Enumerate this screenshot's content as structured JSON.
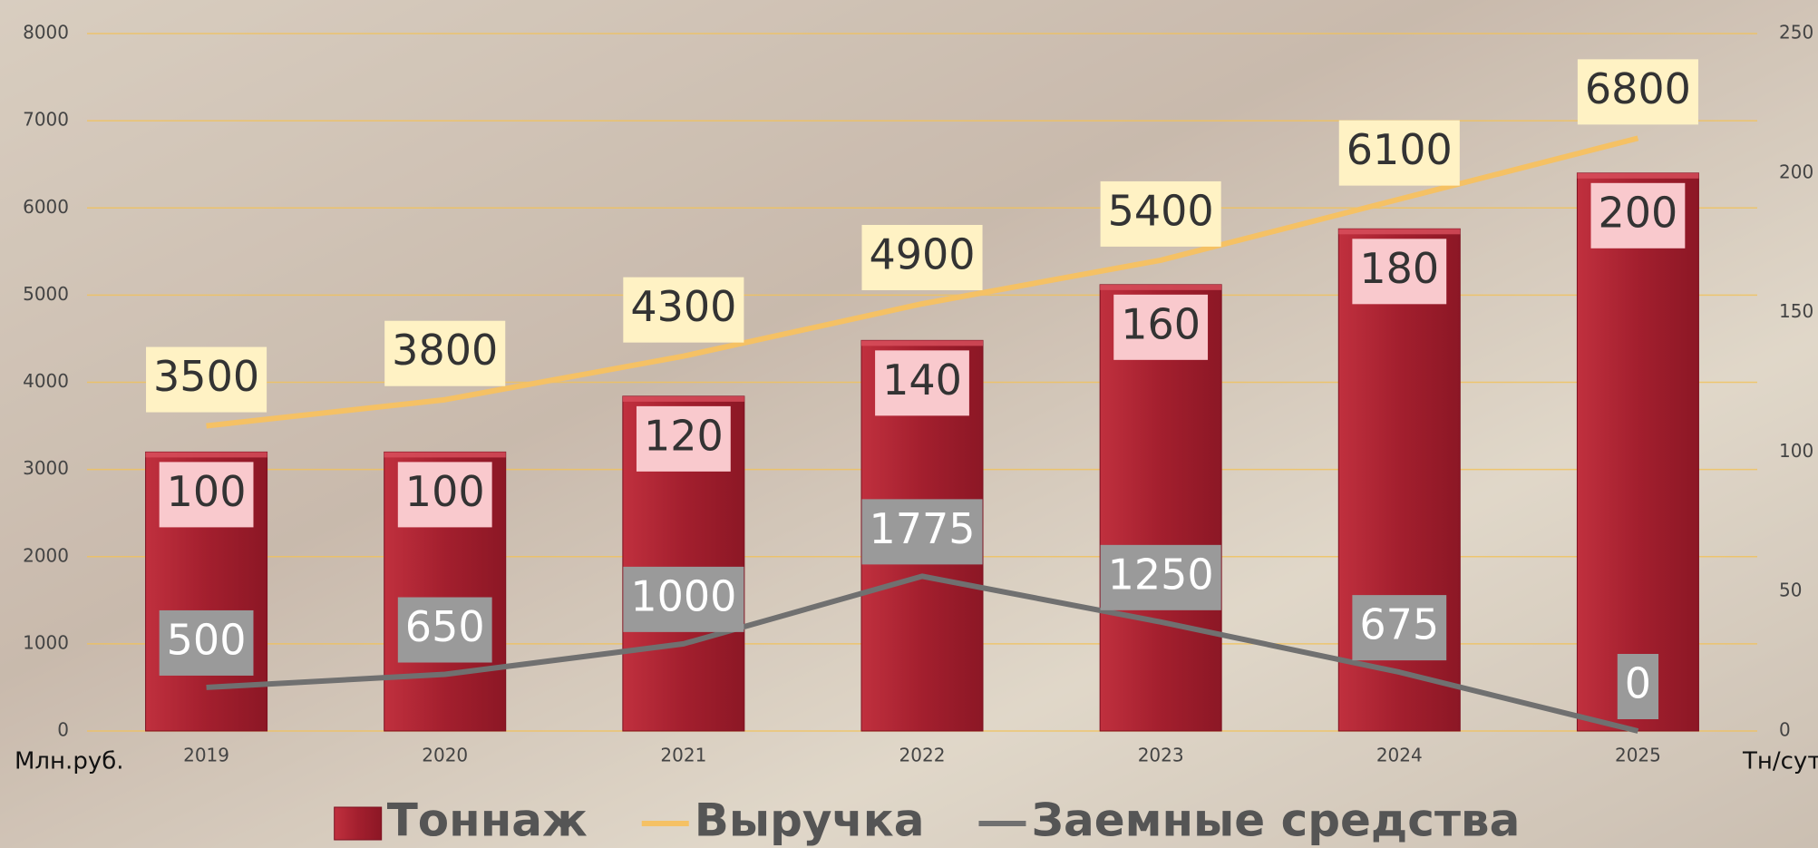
{
  "chart_data": {
    "type": "bar_line",
    "categories": [
      "2019",
      "2020",
      "2021",
      "2022",
      "2023",
      "2024",
      "2025"
    ],
    "series": [
      {
        "name": "Тоннаж",
        "type": "bar",
        "axis": "y2",
        "color": "#a31f2e",
        "values": [
          100,
          100,
          120,
          140,
          160,
          180,
          200
        ]
      },
      {
        "name": "Выручка",
        "type": "line",
        "axis": "y",
        "color": "#f5c164",
        "values": [
          3500,
          3800,
          4300,
          4900,
          5400,
          6100,
          6800
        ]
      },
      {
        "name": "Заемные средства",
        "type": "line",
        "axis": "y",
        "color": "#707070",
        "values": [
          500,
          650,
          1000,
          1775,
          1250,
          675,
          0
        ]
      }
    ],
    "ylabel": "Млн.руб.",
    "y2label": "Тн/сут",
    "ylim": [
      0,
      8000
    ],
    "yticks": [
      0,
      1000,
      2000,
      3000,
      4000,
      5000,
      6000,
      7000,
      8000
    ],
    "y2lim": [
      0,
      250
    ],
    "y2ticks": [
      0,
      50,
      100,
      150,
      200,
      250
    ],
    "grid": true,
    "legend": "bottom"
  }
}
